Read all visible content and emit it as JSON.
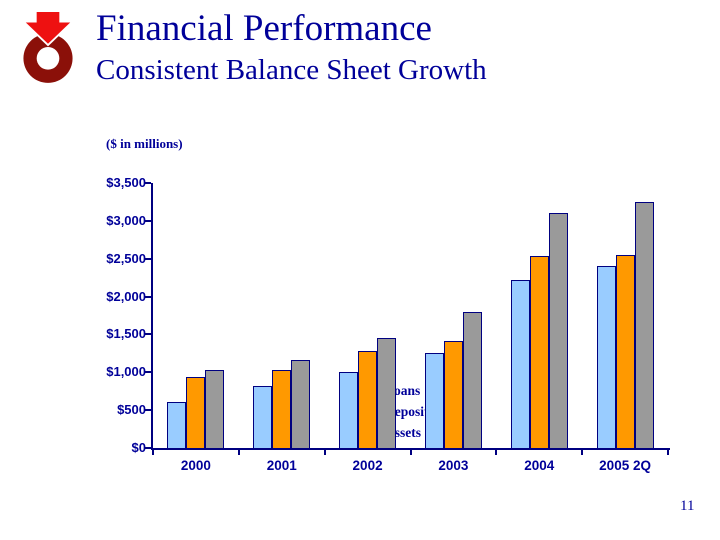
{
  "slide": {
    "title": "Financial Performance",
    "subtitle": "Consistent Balance Sheet Growth",
    "page_number": "11"
  },
  "colors": {
    "title_text": "#000099",
    "chart_text": "#000099",
    "axis": "#000080",
    "bar_border": "#000080",
    "loans": "#99CCFF",
    "deposits": "#FF9900",
    "assets": "#9A9A9A",
    "logo_ring": "#8B1009",
    "logo_arrow": "#EE1111"
  },
  "chart_data": {
    "type": "bar",
    "units_label": "($ in millions)",
    "categories": [
      "2000",
      "2001",
      "2002",
      "2003",
      "2004",
      "2005 2Q"
    ],
    "series": [
      {
        "name": "Loans",
        "color_key": "loans",
        "values": [
          610,
          820,
          1000,
          1260,
          2220,
          2410
        ]
      },
      {
        "name": "Deposits",
        "color_key": "deposits",
        "values": [
          940,
          1030,
          1280,
          1420,
          2530,
          2550
        ]
      },
      {
        "name": "Assets",
        "color_key": "assets",
        "values": [
          1030,
          1160,
          1450,
          1790,
          3100,
          3250
        ]
      }
    ],
    "ylim": [
      0,
      3500
    ],
    "ytick_step": 500,
    "ytick_labels": [
      "$0",
      "$500",
      "$1,000",
      "$1,500",
      "$2,000",
      "$2,500",
      "$3,000",
      "$3,500"
    ],
    "legend_position": "top-left-inside",
    "grid": false
  }
}
